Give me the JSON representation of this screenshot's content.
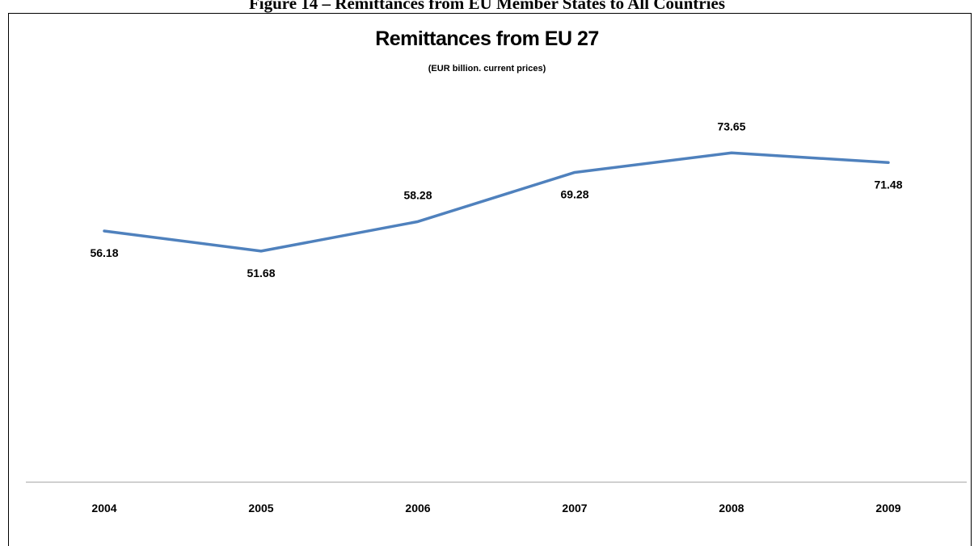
{
  "figure": {
    "caption": "Figure 14 – Remittances from EU Member States to All Countries"
  },
  "chart_data": {
    "type": "line",
    "title": "Remittances from EU 27",
    "subtitle": "(EUR billion. current prices)",
    "x": [
      "2004",
      "2005",
      "2006",
      "2007",
      "2008",
      "2009"
    ],
    "series": [
      {
        "values": [
          56.18,
          51.68,
          58.28,
          69.28,
          73.65,
          71.48
        ],
        "color": "#4f81bd"
      }
    ],
    "ylim": [
      0,
      97
    ],
    "data_label_position": [
      "below",
      "below",
      "above",
      "below",
      "above",
      "below"
    ],
    "grid": false,
    "legend": "none",
    "xlabel": "",
    "ylabel": ""
  }
}
